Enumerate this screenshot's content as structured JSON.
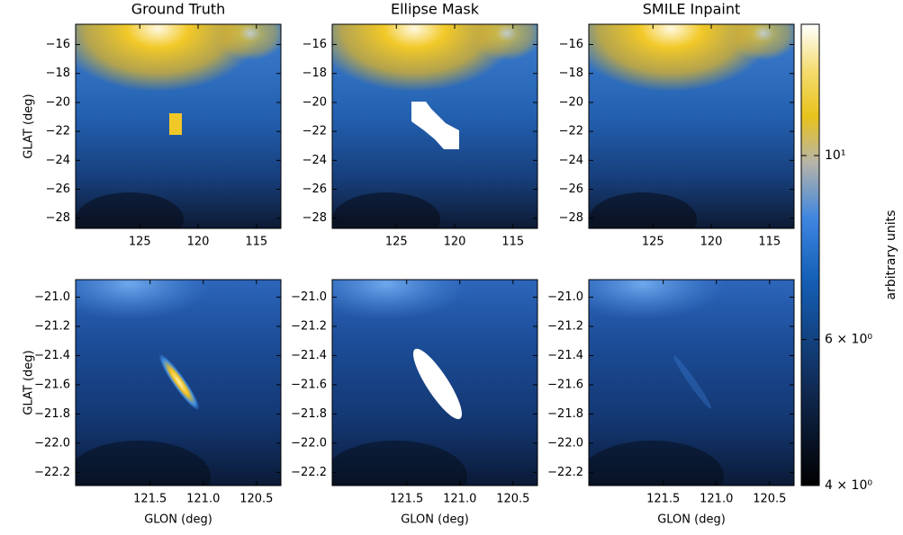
{
  "chart_data": [
    {
      "type": "image",
      "title": "Ground Truth",
      "ylabel": "GLAT (deg)",
      "xlim": [
        130.5,
        112.9
      ],
      "ylim": [
        -28.7,
        -14.6
      ],
      "xticks": [
        125,
        120,
        115
      ],
      "yticks": [
        {
          "value": -16,
          "label": "−16"
        },
        {
          "value": -18,
          "label": "−18"
        },
        {
          "value": -20,
          "label": "−20"
        },
        {
          "value": -22,
          "label": "−22"
        },
        {
          "value": -24,
          "label": "−24"
        },
        {
          "value": -26,
          "label": "−26"
        },
        {
          "value": -28,
          "label": "−28"
        }
      ]
    },
    {
      "type": "image",
      "title": "Ellipse Mask",
      "xlim": [
        130.5,
        112.9
      ],
      "ylim": [
        -28.7,
        -14.6
      ],
      "xticks": [
        125,
        120,
        115
      ],
      "yticks": [
        {
          "value": -16,
          "label": "−16"
        },
        {
          "value": -18,
          "label": "−18"
        },
        {
          "value": -20,
          "label": "−20"
        },
        {
          "value": -22,
          "label": "−22"
        },
        {
          "value": -24,
          "label": "−24"
        },
        {
          "value": -26,
          "label": "−26"
        },
        {
          "value": -28,
          "label": "−28"
        }
      ]
    },
    {
      "type": "image",
      "title": "SMILE Inpaint",
      "xlim": [
        130.5,
        112.9
      ],
      "ylim": [
        -28.7,
        -14.6
      ],
      "xticks": [
        125,
        120,
        115
      ],
      "yticks": [
        {
          "value": -16,
          "label": "−16"
        },
        {
          "value": -18,
          "label": "−18"
        },
        {
          "value": -20,
          "label": "−20"
        },
        {
          "value": -22,
          "label": "−22"
        },
        {
          "value": -24,
          "label": "−24"
        },
        {
          "value": -26,
          "label": "−26"
        },
        {
          "value": -28,
          "label": "−28"
        }
      ]
    },
    {
      "type": "image",
      "xlabel": "GLON (deg)",
      "ylabel": "GLAT (deg)",
      "xlim": [
        122.2,
        120.27
      ],
      "ylim": [
        -22.29,
        -20.88
      ],
      "xticks": [
        121.5,
        {
          "value": 121.0,
          "label": "121.0"
        },
        120.5
      ],
      "yticks": [
        {
          "value": -21.0,
          "label": "−21.0"
        },
        {
          "value": -21.2,
          "label": "−21.2"
        },
        {
          "value": -21.4,
          "label": "−21.4"
        },
        {
          "value": -21.6,
          "label": "−21.6"
        },
        {
          "value": -21.8,
          "label": "−21.8"
        },
        {
          "value": -22.0,
          "label": "−22.0"
        },
        {
          "value": -22.2,
          "label": "−22.2"
        }
      ]
    },
    {
      "type": "image",
      "xlabel": "GLON (deg)",
      "xlim": [
        122.2,
        120.27
      ],
      "ylim": [
        -22.29,
        -20.88
      ],
      "xticks": [
        121.5,
        {
          "value": 121.0,
          "label": "121.0"
        },
        120.5
      ],
      "yticks": [
        {
          "value": -21.0,
          "label": "−21.0"
        },
        {
          "value": -21.2,
          "label": "−21.2"
        },
        {
          "value": -21.4,
          "label": "−21.4"
        },
        {
          "value": -21.6,
          "label": "−21.6"
        },
        {
          "value": -21.8,
          "label": "−21.8"
        },
        {
          "value": -22.0,
          "label": "−22.0"
        },
        {
          "value": -22.2,
          "label": "−22.2"
        }
      ]
    },
    {
      "type": "image",
      "xlabel": "GLON (deg)",
      "xlim": [
        122.2,
        120.27
      ],
      "ylim": [
        -22.29,
        -20.88
      ],
      "xticks": [
        121.5,
        {
          "value": 121.0,
          "label": "121.0"
        },
        120.5
      ],
      "yticks": [
        {
          "value": -21.0,
          "label": "−21.0"
        },
        {
          "value": -21.2,
          "label": "−21.2"
        },
        {
          "value": -21.4,
          "label": "−21.4"
        },
        {
          "value": -21.6,
          "label": "−21.6"
        },
        {
          "value": -21.8,
          "label": "−21.8"
        },
        {
          "value": -22.0,
          "label": "−22.0"
        },
        {
          "value": -22.2,
          "label": "−22.2"
        }
      ]
    },
    {
      "type": "colorbar",
      "label": "arbitrary units",
      "log_scale": true,
      "ylim": [
        4,
        14.4
      ],
      "yticks": [
        {
          "value": 4,
          "label": "4 × 10⁰"
        },
        {
          "value": 6,
          "label": "6 × 10⁰"
        },
        {
          "value": 10,
          "label": "10¹"
        }
      ]
    }
  ]
}
